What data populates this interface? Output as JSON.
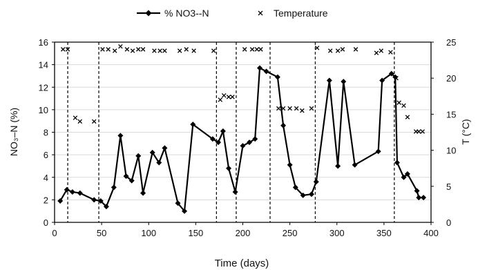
{
  "chart_data": {
    "type": "line",
    "legend": {
      "placement": "top-center",
      "items": [
        {
          "label": "% NO3--N",
          "marker": "line-diamond"
        },
        {
          "label": "Temperature",
          "marker": "x"
        }
      ]
    },
    "xlabel": "Time (days)",
    "ylabel_left": "NO₃–N (%)",
    "ylabel_right": "T (°C)",
    "xlim": [
      0,
      400
    ],
    "ylim_left": [
      0,
      16
    ],
    "ylim_right": [
      0,
      25
    ],
    "x_ticks": [
      0,
      50,
      100,
      150,
      200,
      250,
      300,
      350,
      400
    ],
    "y_left_ticks": [
      0,
      2,
      4,
      6,
      8,
      10,
      12,
      14,
      16
    ],
    "y_right_ticks": [
      0,
      5,
      10,
      15,
      20,
      25
    ],
    "vertical_dashed_lines_x": [
      14,
      47,
      172,
      193,
      229,
      277,
      361
    ],
    "series": [
      {
        "name": "% NO3--N",
        "axis": "left",
        "color": "#000000",
        "marker": "diamond",
        "points": [
          [
            6,
            1.9
          ],
          [
            13,
            2.9
          ],
          [
            19,
            2.7
          ],
          [
            27,
            2.6
          ],
          [
            42,
            2.0
          ],
          [
            49,
            1.9
          ],
          [
            55,
            1.4
          ],
          [
            63,
            3.1
          ],
          [
            70,
            7.7
          ],
          [
            76,
            4.1
          ],
          [
            82,
            3.7
          ],
          [
            89,
            5.9
          ],
          [
            94,
            2.6
          ],
          [
            104,
            6.2
          ],
          [
            111,
            5.3
          ],
          [
            117,
            6.6
          ],
          [
            131,
            1.7
          ],
          [
            138,
            1.0
          ],
          [
            147,
            8.7
          ],
          [
            168,
            7.4
          ],
          [
            174,
            7.1
          ],
          [
            179,
            8.1
          ],
          [
            185,
            4.8
          ],
          [
            192,
            2.7
          ],
          [
            200,
            6.8
          ],
          [
            207,
            7.1
          ],
          [
            213,
            7.4
          ],
          [
            218,
            13.7
          ],
          [
            225,
            13.4
          ],
          [
            237,
            12.9
          ],
          [
            243,
            8.6
          ],
          [
            250,
            5.1
          ],
          [
            256,
            3.1
          ],
          [
            264,
            2.4
          ],
          [
            273,
            2.5
          ],
          [
            278,
            3.6
          ],
          [
            292,
            12.6
          ],
          [
            301,
            5.0
          ],
          [
            307,
            12.5
          ],
          [
            319,
            5.1
          ],
          [
            344,
            6.3
          ],
          [
            348,
            12.6
          ],
          [
            358,
            13.2
          ],
          [
            362,
            12.9
          ],
          [
            364,
            5.3
          ],
          [
            371,
            4.0
          ],
          [
            375,
            4.3
          ],
          [
            385,
            2.8
          ],
          [
            387,
            2.2
          ],
          [
            392,
            2.2
          ]
        ]
      },
      {
        "name": "Temperature",
        "axis": "right",
        "color": "#000000",
        "marker": "x",
        "points": [
          [
            9,
            24
          ],
          [
            14,
            24
          ],
          [
            22,
            14.5
          ],
          [
            27,
            14
          ],
          [
            42,
            14
          ],
          [
            51,
            24
          ],
          [
            57,
            24
          ],
          [
            64,
            23.8
          ],
          [
            70,
            24.4
          ],
          [
            77,
            24
          ],
          [
            83,
            23.8
          ],
          [
            89,
            24
          ],
          [
            94,
            24
          ],
          [
            106,
            23.8
          ],
          [
            112,
            23.8
          ],
          [
            117,
            23.8
          ],
          [
            133,
            23.8
          ],
          [
            140,
            24
          ],
          [
            148,
            23.8
          ],
          [
            169,
            23.8
          ],
          [
            176,
            17
          ],
          [
            180,
            17.6
          ],
          [
            185,
            17.4
          ],
          [
            189,
            17.4
          ],
          [
            202,
            24
          ],
          [
            210,
            24
          ],
          [
            215,
            24
          ],
          [
            219,
            24
          ],
          [
            238,
            15.8
          ],
          [
            243,
            15.8
          ],
          [
            250,
            15.8
          ],
          [
            257,
            15.8
          ],
          [
            263,
            15.5
          ],
          [
            273,
            15.8
          ],
          [
            279,
            24.2
          ],
          [
            293,
            23.8
          ],
          [
            301,
            23.8
          ],
          [
            306,
            24
          ],
          [
            320,
            24
          ],
          [
            342,
            23.5
          ],
          [
            347,
            23.8
          ],
          [
            357,
            23.6
          ],
          [
            363,
            20
          ],
          [
            366,
            16.6
          ],
          [
            371,
            16.2
          ],
          [
            375,
            14.6
          ],
          [
            384,
            12.6
          ],
          [
            387,
            12.6
          ],
          [
            391,
            12.6
          ]
        ]
      }
    ]
  }
}
